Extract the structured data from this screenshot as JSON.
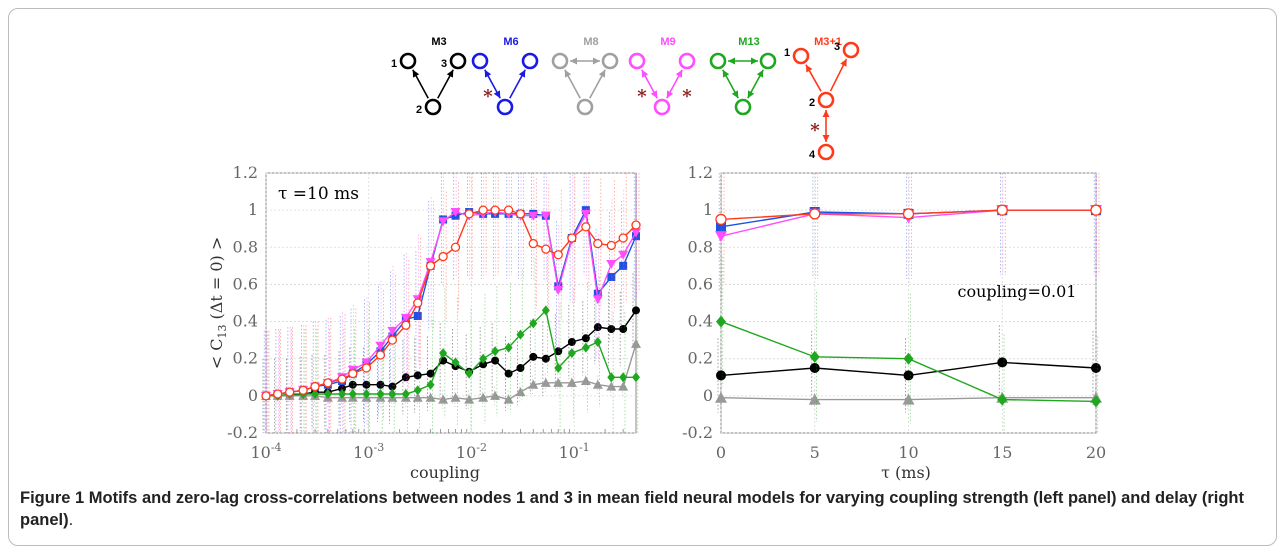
{
  "figure": {
    "caption_label": "Figure 1",
    "caption_text": "Motifs and zero-lag cross-correlations between nodes 1 and 3 in mean field neural models for varying coupling strength (left panel) and delay (right panel)"
  },
  "motifs": [
    {
      "id": "m3",
      "name": "M3",
      "color": "#000000",
      "nodes": [
        "1",
        "2",
        "3"
      ]
    },
    {
      "id": "m6",
      "name": "M6",
      "color": "#1a1ae6",
      "nodes": []
    },
    {
      "id": "m8",
      "name": "M8",
      "color": "#a0a0a0",
      "nodes": []
    },
    {
      "id": "m9",
      "name": "M9",
      "color": "#ff4dff",
      "nodes": []
    },
    {
      "id": "m13",
      "name": "M13",
      "color": "#1fa81f",
      "nodes": []
    },
    {
      "id": "m31",
      "name": "M3+1",
      "color": "#ff3a1a",
      "nodes": [
        "1",
        "2",
        "3",
        "4"
      ]
    }
  ],
  "delay_marker": "*",
  "chart_data": [
    {
      "type": "line",
      "panel": "left",
      "ylabel": "< C13 (Δt = 0) >",
      "xlabel": "coupling",
      "annotation": "τ =10 ms",
      "xscale": "log",
      "xlim": [
        0.0001,
        0.4
      ],
      "ylim": [
        -0.2,
        1.2
      ],
      "xticks": [
        "10-4",
        "10-3",
        "10-2",
        "10-1"
      ],
      "yticks": [
        "-0.2",
        "0",
        "0.2",
        "0.4",
        "0.6",
        "0.8",
        "1",
        "1.2"
      ],
      "grid": true,
      "x": [
        0.0001,
        0.00013,
        0.00017,
        0.00023,
        0.0003,
        0.0004,
        0.00055,
        0.0007,
        0.00095,
        0.0013,
        0.0017,
        0.0023,
        0.003,
        0.004,
        0.0053,
        0.007,
        0.0095,
        0.013,
        0.017,
        0.023,
        0.03,
        0.04,
        0.053,
        0.07,
        0.095,
        0.13,
        0.17,
        0.23,
        0.3,
        0.4
      ],
      "series": [
        {
          "id": "M3",
          "color": "#000000",
          "marker": "circle-filled",
          "values": [
            0.0,
            0.0,
            0.0,
            0.01,
            0.02,
            0.02,
            0.04,
            0.06,
            0.06,
            0.06,
            0.05,
            0.1,
            0.11,
            0.12,
            0.19,
            0.16,
            0.13,
            0.17,
            0.19,
            0.12,
            0.15,
            0.21,
            0.2,
            0.24,
            0.29,
            0.31,
            0.37,
            0.36,
            0.36,
            0.46
          ]
        },
        {
          "id": "M6",
          "color": "#1a52e6",
          "marker": "square-filled",
          "values": [
            0.0,
            0.01,
            0.02,
            0.03,
            0.05,
            0.06,
            0.08,
            0.12,
            0.17,
            0.24,
            0.32,
            0.41,
            0.43,
            0.7,
            0.95,
            0.97,
            0.99,
            0.98,
            0.98,
            0.98,
            0.98,
            0.98,
            0.97,
            0.59,
            0.85,
            1.0,
            0.55,
            0.64,
            0.7,
            0.86
          ]
        },
        {
          "id": "M8",
          "color": "#999999",
          "marker": "triangle-filled",
          "values": [
            0.0,
            0.0,
            0.0,
            0.0,
            0.0,
            -0.01,
            -0.01,
            -0.01,
            -0.01,
            -0.01,
            -0.01,
            -0.01,
            -0.01,
            -0.01,
            -0.02,
            -0.01,
            -0.02,
            -0.01,
            0.0,
            -0.02,
            0.02,
            0.06,
            0.07,
            0.07,
            0.07,
            0.08,
            0.06,
            0.05,
            0.05,
            0.28
          ]
        },
        {
          "id": "M9",
          "color": "#ff4dff",
          "marker": "triangle-down-filled",
          "values": [
            0.0,
            0.01,
            0.02,
            0.03,
            0.05,
            0.07,
            0.1,
            0.14,
            0.18,
            0.27,
            0.35,
            0.42,
            0.52,
            0.72,
            0.94,
            0.99,
            0.97,
            0.98,
            0.99,
            0.98,
            0.97,
            0.97,
            0.97,
            0.57,
            0.84,
            0.98,
            0.52,
            0.71,
            0.76,
            0.88
          ]
        },
        {
          "id": "M13",
          "color": "#1fa81f",
          "marker": "diamond-filled",
          "values": [
            0.0,
            0.0,
            0.01,
            0.01,
            0.01,
            0.01,
            0.01,
            0.01,
            0.01,
            0.01,
            0.01,
            0.01,
            0.03,
            0.06,
            0.23,
            0.18,
            0.12,
            0.2,
            0.24,
            0.26,
            0.33,
            0.39,
            0.46,
            0.15,
            0.23,
            0.26,
            0.29,
            0.1,
            0.1,
            0.1
          ]
        },
        {
          "id": "M3+1",
          "color": "#ff3a1a",
          "marker": "circle-open",
          "values": [
            0.0,
            0.01,
            0.02,
            0.03,
            0.05,
            0.07,
            0.09,
            0.12,
            0.15,
            0.22,
            0.3,
            0.38,
            0.5,
            0.7,
            0.75,
            0.8,
            0.98,
            1.0,
            1.0,
            1.0,
            0.98,
            0.82,
            0.79,
            0.76,
            0.85,
            0.91,
            0.82,
            0.81,
            0.85,
            0.92
          ]
        }
      ]
    },
    {
      "type": "line",
      "panel": "right",
      "xlabel": "τ (ms)",
      "annotation": "coupling=0.01",
      "xlim": [
        0,
        20
      ],
      "ylim": [
        -0.2,
        1.2
      ],
      "xticks": [
        "0",
        "5",
        "10",
        "15",
        "20"
      ],
      "yticks": [
        "-0.2",
        "0",
        "0.2",
        "0.4",
        "0.6",
        "0.8",
        "1",
        "1.2"
      ],
      "grid": true,
      "x": [
        0,
        5,
        10,
        15,
        20
      ],
      "series": [
        {
          "id": "M3",
          "color": "#000000",
          "marker": "circle-filled",
          "values": [
            0.11,
            0.15,
            0.11,
            0.18,
            0.15
          ]
        },
        {
          "id": "M6",
          "color": "#1a52e6",
          "marker": "square-filled",
          "values": [
            0.91,
            0.99,
            0.98,
            1.0,
            1.0
          ]
        },
        {
          "id": "M8",
          "color": "#999999",
          "marker": "triangle-filled",
          "values": [
            -0.01,
            -0.02,
            -0.02,
            -0.01,
            -0.01
          ]
        },
        {
          "id": "M9",
          "color": "#ff4dff",
          "marker": "triangle-down-filled",
          "values": [
            0.86,
            0.98,
            0.96,
            1.0,
            1.0
          ]
        },
        {
          "id": "M13",
          "color": "#1fa81f",
          "marker": "diamond-filled",
          "values": [
            0.4,
            0.21,
            0.2,
            -0.02,
            -0.03
          ]
        },
        {
          "id": "M3+1",
          "color": "#ff3a1a",
          "marker": "circle-open",
          "values": [
            0.95,
            0.98,
            0.98,
            1.0,
            1.0
          ]
        }
      ]
    }
  ]
}
